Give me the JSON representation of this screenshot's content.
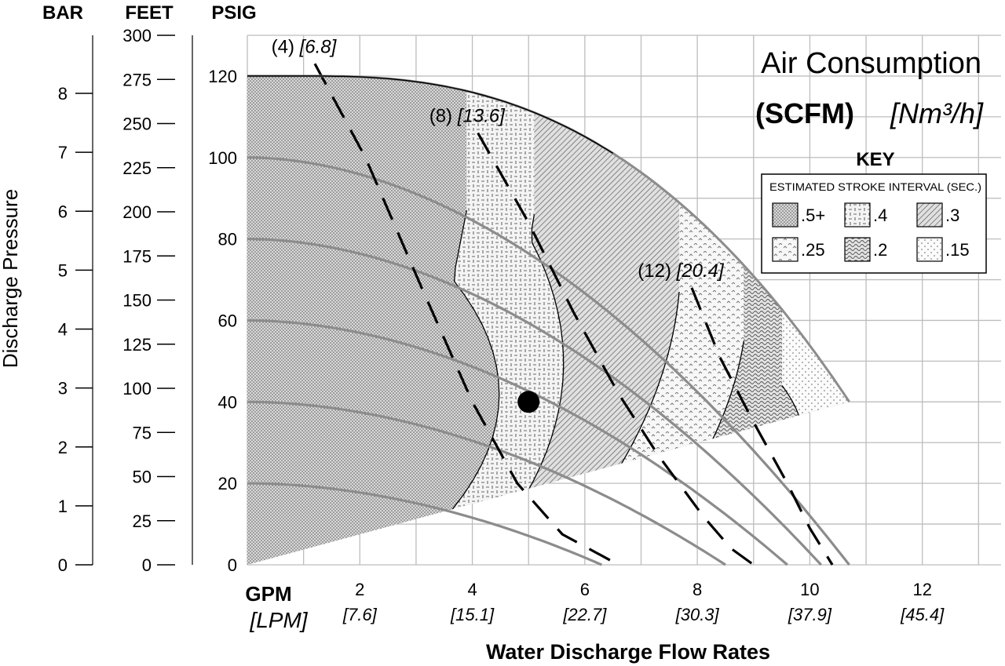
{
  "chart_data": {
    "type": "line",
    "title": "Air Consumption",
    "subtitle_bold": "(SCFM)",
    "subtitle_italic": "[Nm³/h]",
    "xlabel": "Water Discharge Flow Rates",
    "x_unit_primary": "GPM",
    "x_unit_secondary": "[LPM]",
    "ylabel": "Discharge Pressure",
    "y_unit_headers": {
      "bar": "BAR",
      "feet": "FEET",
      "psig": "PSIG"
    },
    "xlim": [
      0,
      13.4
    ],
    "ylim": [
      0,
      130
    ],
    "x_ticks": [
      {
        "gpm": 2,
        "gpm_label": "2",
        "lpm_label": "[7.6]"
      },
      {
        "gpm": 4,
        "gpm_label": "4",
        "lpm_label": "[15.1]"
      },
      {
        "gpm": 6,
        "gpm_label": "6",
        "lpm_label": "[22.7]"
      },
      {
        "gpm": 8,
        "gpm_label": "8",
        "lpm_label": "[30.3]"
      },
      {
        "gpm": 10,
        "gpm_label": "10",
        "lpm_label": "[37.9]"
      },
      {
        "gpm": 12,
        "gpm_label": "12",
        "lpm_label": "[45.4]"
      }
    ],
    "psig_ticks": [
      0,
      20,
      40,
      60,
      80,
      100,
      120
    ],
    "feet_ticks": [
      0,
      25,
      50,
      75,
      100,
      125,
      150,
      175,
      200,
      225,
      250,
      275,
      300
    ],
    "bar_ticks": [
      0,
      1,
      2,
      3,
      4,
      5,
      6,
      7,
      8
    ],
    "grid": true,
    "performance_curves_psig_at_zero_flow": [
      120,
      100,
      80,
      60,
      40,
      20
    ],
    "air_consumption_curves": [
      {
        "label_scfm": "(4)",
        "label_nm3h": "[6.8]",
        "points": [
          [
            1.2,
            123
          ],
          [
            2.1,
            100
          ],
          [
            3.1,
            68
          ],
          [
            4.0,
            40
          ],
          [
            4.8,
            20
          ],
          [
            5.6,
            7.5
          ],
          [
            6.6,
            0
          ]
        ]
      },
      {
        "label_scfm": "(8)",
        "label_nm3h": "[13.6]",
        "points": [
          [
            4.1,
            106
          ],
          [
            5.0,
            84
          ],
          [
            5.8,
            62
          ],
          [
            6.6,
            42
          ],
          [
            7.3,
            27
          ],
          [
            8.1,
            12
          ],
          [
            8.6,
            4
          ],
          [
            9.0,
            0
          ]
        ]
      },
      {
        "label_scfm": "(12)",
        "label_nm3h": "[20.4]",
        "points": [
          [
            7.9,
            68
          ],
          [
            8.4,
            51
          ],
          [
            9.0,
            35
          ],
          [
            9.6,
            20
          ],
          [
            10.0,
            9
          ],
          [
            10.4,
            0
          ]
        ]
      }
    ],
    "operating_point": {
      "gpm": 5,
      "psig": 40
    },
    "key": {
      "title": "KEY",
      "subtitle": "ESTIMATED STROKE INTERVAL (SEC.)",
      "items": [
        {
          "label": ".5+",
          "pattern": "dots-dense"
        },
        {
          "label": ".4",
          "pattern": "dash-checker"
        },
        {
          "label": ".3",
          "pattern": "diagonal-lines"
        },
        {
          "label": ".25",
          "pattern": "chevrons"
        },
        {
          "label": ".2",
          "pattern": "waves"
        },
        {
          "label": ".15",
          "pattern": "dots-sparse"
        }
      ]
    },
    "colors": {
      "curve": "#8c8c8c",
      "grid": "#bdbdbd",
      "ink": "#000000"
    }
  }
}
